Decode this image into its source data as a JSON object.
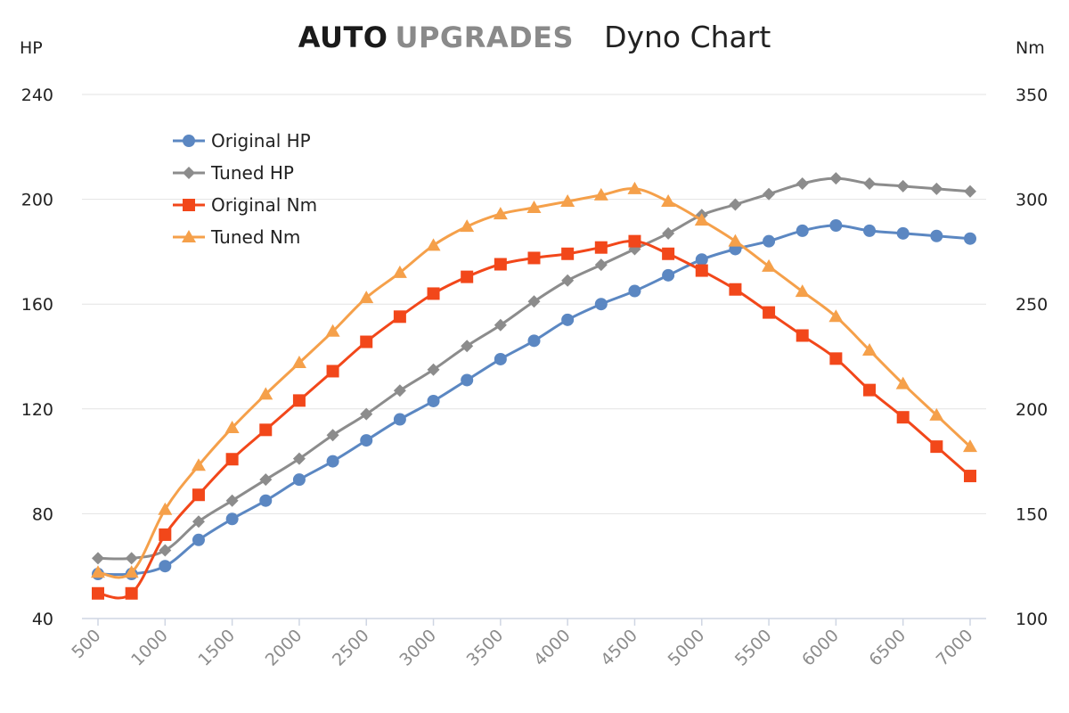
{
  "brand": {
    "word1": "AUTO",
    "word2": "UPGRADES"
  },
  "chart_data": {
    "type": "line",
    "title": "Dyno Chart",
    "x": [
      500,
      750,
      1000,
      1250,
      1500,
      1750,
      2000,
      2250,
      2500,
      2750,
      3000,
      3250,
      3500,
      3750,
      4000,
      4250,
      4500,
      4750,
      5000,
      5250,
      5500,
      5750,
      6000,
      6250,
      6500,
      6750,
      7000
    ],
    "x_ticks": [
      "500",
      "1000",
      "1500",
      "2000",
      "2500",
      "3000",
      "3500",
      "4000",
      "4500",
      "5000",
      "5500",
      "6000",
      "6500",
      "7000"
    ],
    "y_left": {
      "label": "HP",
      "ylim": [
        40,
        240
      ],
      "ticks": [
        "40",
        "80",
        "120",
        "160",
        "200",
        "240"
      ]
    },
    "y_right": {
      "label": "Nm",
      "ylim": [
        100,
        350
      ],
      "ticks": [
        "100",
        "150",
        "200",
        "250",
        "300",
        "350"
      ]
    },
    "grid": true,
    "legend_position": "top-left",
    "series": [
      {
        "name": "Original HP",
        "axis": "left",
        "marker": "circle",
        "color": "#5b87c2",
        "values": [
          57,
          57,
          60,
          70,
          78,
          85,
          93,
          100,
          108,
          116,
          123,
          131,
          139,
          146,
          154,
          160,
          165,
          171,
          177,
          181,
          184,
          188,
          190,
          188,
          187,
          186,
          185
        ]
      },
      {
        "name": "Tuned HP",
        "axis": "left",
        "marker": "diamond",
        "color": "#8c8c8c",
        "values": [
          63,
          63,
          66,
          77,
          85,
          93,
          101,
          110,
          118,
          127,
          135,
          144,
          152,
          161,
          169,
          175,
          181,
          187,
          194,
          198,
          202,
          206,
          208,
          206,
          205,
          204,
          203
        ]
      },
      {
        "name": "Original Nm",
        "axis": "right",
        "marker": "square",
        "color": "#f2471a",
        "values": [
          112,
          112,
          140,
          159,
          176,
          190,
          204,
          218,
          232,
          244,
          255,
          263,
          269,
          272,
          274,
          277,
          280,
          274,
          266,
          257,
          246,
          235,
          224,
          209,
          196,
          182,
          168
        ]
      },
      {
        "name": "Tuned Nm",
        "axis": "right",
        "marker": "triangle",
        "color": "#f5a04a",
        "values": [
          122,
          122,
          152,
          173,
          191,
          207,
          222,
          237,
          253,
          265,
          278,
          287,
          293,
          296,
          299,
          302,
          305,
          299,
          290,
          280,
          268,
          256,
          244,
          228,
          212,
          197,
          182
        ]
      }
    ]
  }
}
